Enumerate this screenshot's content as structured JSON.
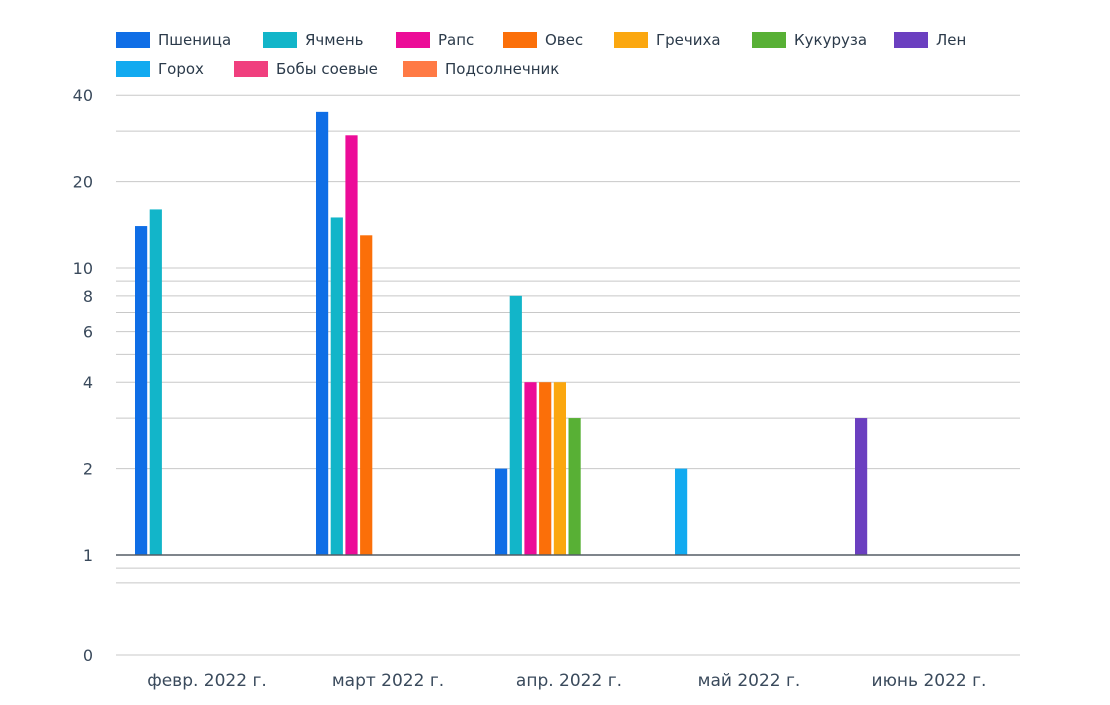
{
  "colors": {
    "axis": "#555d66",
    "grid": "#c8c8c8"
  },
  "chart_data": {
    "type": "bar",
    "title": "",
    "xlabel": "",
    "ylabel": "",
    "y_scale": "log (with 0 baseline)",
    "ylim": [
      0,
      40
    ],
    "grid": true,
    "legend_position": "top-left",
    "y_tick_labels": [
      "0",
      "1",
      "2",
      "4",
      "6",
      "8",
      "10",
      "20",
      "40"
    ],
    "categories": [
      "февр. 2022 г.",
      "март 2022 г.",
      "апр. 2022 г.",
      "май 2022 г.",
      "июнь 2022 г."
    ],
    "series": [
      {
        "name": "Пшеница",
        "color": "#0f6ee6",
        "values": [
          14,
          35,
          2,
          1,
          1
        ]
      },
      {
        "name": "Ячмень",
        "color": "#12b5c9",
        "values": [
          16,
          15,
          8,
          1,
          1
        ]
      },
      {
        "name": "Рапс",
        "color": "#ec0c98",
        "values": [
          1,
          29,
          4,
          1,
          1
        ]
      },
      {
        "name": "Овес",
        "color": "#fb6f09",
        "values": [
          1,
          13,
          4,
          1,
          1
        ]
      },
      {
        "name": "Гречиха",
        "color": "#fba70f",
        "values": [
          1,
          1,
          4,
          1,
          1
        ]
      },
      {
        "name": "Кукуруза",
        "color": "#58b035",
        "values": [
          1,
          1,
          3,
          1,
          1
        ]
      },
      {
        "name": "Лен",
        "color": "#6b3fc0",
        "values": [
          1,
          1,
          1,
          1,
          3
        ]
      },
      {
        "name": "Горох",
        "color": "#12aaf0",
        "values": [
          1,
          1,
          1,
          2,
          1
        ]
      },
      {
        "name": "Бобы соевые",
        "color": "#f03f7e",
        "values": [
          1,
          1,
          1,
          1,
          1
        ]
      },
      {
        "name": "Подсолнечник",
        "color": "#ff7a45",
        "values": [
          1,
          1,
          1,
          1,
          1
        ]
      }
    ]
  }
}
